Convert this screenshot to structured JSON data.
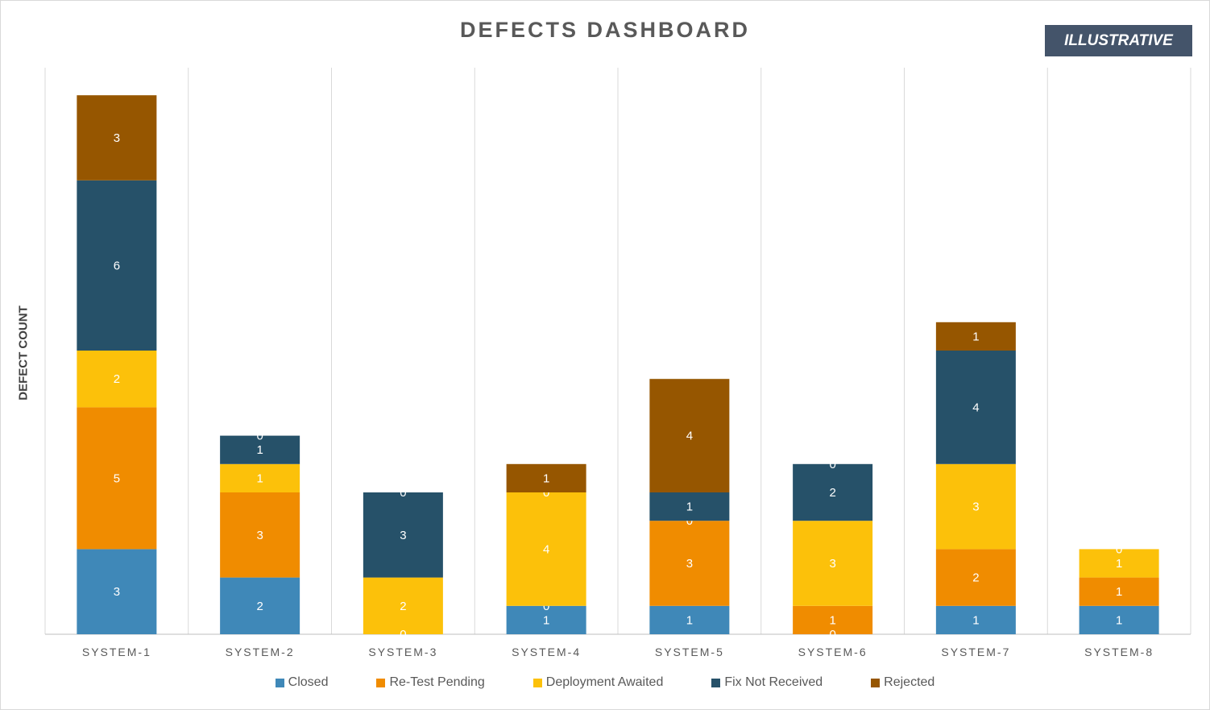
{
  "badge": "ILLUSTRATIVE",
  "chart_data": {
    "type": "bar",
    "stacked": true,
    "title": "DEFECTS  DASHBOARD",
    "xlabel": "",
    "ylabel": "DEFECT COUNT",
    "ylim": [
      0,
      19
    ],
    "grid": "vertical category separators",
    "legend_position": "bottom",
    "categories": [
      "SYSTEM-1",
      "SYSTEM-2",
      "SYSTEM-3",
      "SYSTEM-4",
      "SYSTEM-5",
      "SYSTEM-6",
      "SYSTEM-7",
      "SYSTEM-8"
    ],
    "series": [
      {
        "name": "Closed",
        "color": "#3f88b8",
        "values": [
          3,
          2,
          0,
          1,
          1,
          0,
          1,
          1
        ],
        "labels": [
          "3",
          "2",
          "",
          "1",
          "1",
          "",
          "1",
          "1"
        ]
      },
      {
        "name": "Re-Test Pending",
        "color": "#f08c00",
        "values": [
          5,
          3,
          0,
          0,
          3,
          1,
          2,
          1
        ],
        "labels": [
          "5",
          "3",
          "",
          "0",
          "3",
          "1",
          "2",
          "1"
        ]
      },
      {
        "name": "Deployment Awaited",
        "color": "#fcc10a",
        "values": [
          2,
          1,
          2,
          4,
          0,
          3,
          3,
          1
        ],
        "labels": [
          "2",
          "1",
          "2",
          "4",
          "0",
          "3",
          "3",
          "1"
        ]
      },
      {
        "name": "Fix Not Received",
        "color": "#265169",
        "values": [
          6,
          1,
          3,
          0,
          1,
          2,
          4,
          0
        ],
        "labels": [
          "6",
          "1",
          "3",
          "0",
          "1",
          "2",
          "4",
          "0"
        ]
      },
      {
        "name": "Rejected",
        "color": "#965600",
        "values": [
          3,
          0,
          0,
          1,
          4,
          0,
          1,
          0
        ],
        "labels": [
          "3",
          "0",
          "0",
          "1",
          "4",
          "0",
          "1",
          ""
        ]
      }
    ],
    "zero_labels_shown": [
      [
        "",
        "",
        "0",
        "",
        "",
        "0",
        "",
        ""
      ]
    ]
  }
}
